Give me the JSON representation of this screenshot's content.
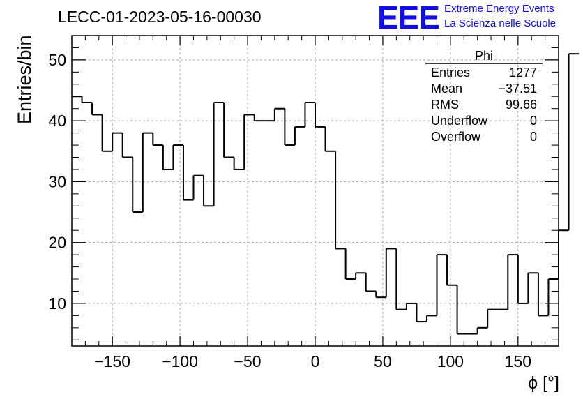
{
  "header": {
    "run_title": "LECC-01-2023-05-16-00030",
    "logo_text": "EEE",
    "logo_line1": "Extreme Energy Events",
    "logo_line2": "La Scienza nelle Scuole",
    "logo_color": "#1010e6"
  },
  "stats_box": {
    "title": "Phi",
    "rows": [
      {
        "label": "Entries",
        "value": "1277"
      },
      {
        "label": "Mean",
        "value": "−37.51"
      },
      {
        "label": "RMS",
        "value": "99.66"
      },
      {
        "label": "Underflow",
        "value": "0"
      },
      {
        "label": "Overflow",
        "value": "0"
      }
    ]
  },
  "chart_data": {
    "type": "bar",
    "style": "step-histogram",
    "xlabel": "ϕ [°]",
    "ylabel": "Entries/bin",
    "xlim": [
      -180,
      180
    ],
    "ylim": [
      3,
      54
    ],
    "grid": true,
    "x_ticks": [
      -150,
      -100,
      -50,
      0,
      50,
      100,
      150
    ],
    "x_tick_labels": [
      "−150",
      "−100",
      "−50",
      "0",
      "50",
      "100",
      "150"
    ],
    "y_ticks": [
      10,
      20,
      30,
      40,
      50
    ],
    "y_tick_labels": [
      "10",
      "20",
      "30",
      "40",
      "50"
    ],
    "bin_edges_start": -180,
    "bin_width": 7.5,
    "values": [
      44,
      43,
      41,
      35,
      38,
      34,
      25,
      38,
      36,
      32,
      36,
      27,
      31,
      26,
      43,
      34,
      32,
      41,
      40,
      40,
      42,
      36,
      39,
      43,
      39,
      35,
      19,
      14,
      15,
      12,
      11,
      19,
      9,
      10,
      7,
      8,
      18,
      13,
      5,
      5,
      6,
      9,
      9,
      18,
      10,
      15,
      8,
      14,
      22,
      51
    ]
  }
}
